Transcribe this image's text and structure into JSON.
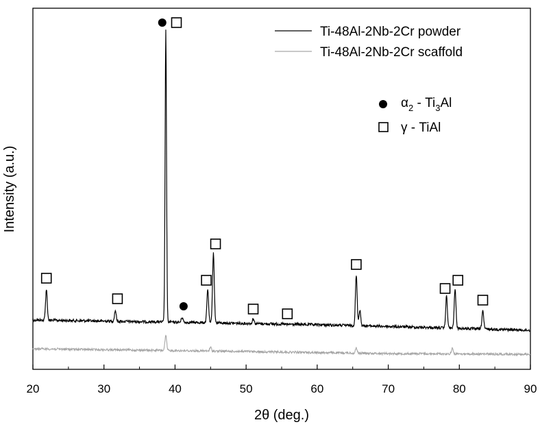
{
  "chart_data": {
    "type": "line",
    "xlabel": "2θ (deg.)",
    "ylabel": "Intensity (a.u.)",
    "xlim": [
      20,
      90
    ],
    "xticks": [
      20,
      30,
      40,
      50,
      60,
      70,
      80,
      90
    ],
    "yticks_shown": false,
    "grid": false,
    "legend_position": "top-right",
    "series": [
      {
        "name": "Ti-48Al-2Nb-2Cr powder",
        "color": "#000000",
        "baseline": [
          [
            20,
            467
          ],
          [
            45,
            471
          ],
          [
            65,
            475
          ],
          [
            90,
            482
          ]
        ],
        "peaks": [
          {
            "x": 21.9,
            "y": 422
          },
          {
            "x": 31.6,
            "y": 453
          },
          {
            "x": 38.7,
            "y": 45
          },
          {
            "x": 41.0,
            "y": 463
          },
          {
            "x": 44.6,
            "y": 423
          },
          {
            "x": 45.4,
            "y": 368
          },
          {
            "x": 51.0,
            "y": 465
          },
          {
            "x": 55.8,
            "y": 474
          },
          {
            "x": 65.5,
            "y": 402
          },
          {
            "x": 66.0,
            "y": 452
          },
          {
            "x": 78.2,
            "y": 432
          },
          {
            "x": 79.4,
            "y": 421
          },
          {
            "x": 83.3,
            "y": 453
          }
        ]
      },
      {
        "name": "Ti-48Al-2Nb-2Cr scaffold",
        "color": "#a6a6a6",
        "baseline": [
          [
            20,
            509
          ],
          [
            50,
            513
          ],
          [
            70,
            516
          ],
          [
            90,
            517
          ]
        ],
        "peaks": [
          {
            "x": 38.7,
            "y": 490
          },
          {
            "x": 45.0,
            "y": 507
          },
          {
            "x": 65.5,
            "y": 508
          },
          {
            "x": 79.0,
            "y": 508
          }
        ]
      }
    ],
    "phase_legend": [
      {
        "symbol": "filled-circle",
        "greek": "α",
        "sub": "2",
        "dash": " - Ti",
        "sub2": "3",
        "tail": "Al"
      },
      {
        "symbol": "open-square",
        "greek": "γ",
        "dash": " - TiAl"
      }
    ],
    "markers": [
      {
        "symbol": "filled-circle",
        "x": 38.2,
        "y": 33
      },
      {
        "symbol": "open-square",
        "x": 40.2,
        "y": 33
      },
      {
        "symbol": "open-square",
        "x": 21.9,
        "y": 406
      },
      {
        "symbol": "open-square",
        "x": 31.9,
        "y": 436
      },
      {
        "symbol": "filled-circle",
        "x": 41.2,
        "y": 447
      },
      {
        "symbol": "open-square",
        "x": 44.4,
        "y": 409
      },
      {
        "symbol": "open-square",
        "x": 45.7,
        "y": 356
      },
      {
        "symbol": "open-square",
        "x": 51.0,
        "y": 451
      },
      {
        "symbol": "open-square",
        "x": 55.8,
        "y": 458
      },
      {
        "symbol": "open-square",
        "x": 65.5,
        "y": 386
      },
      {
        "symbol": "open-square",
        "x": 78.0,
        "y": 421
      },
      {
        "symbol": "open-square",
        "x": 79.8,
        "y": 409
      },
      {
        "symbol": "open-square",
        "x": 83.3,
        "y": 438
      }
    ]
  }
}
